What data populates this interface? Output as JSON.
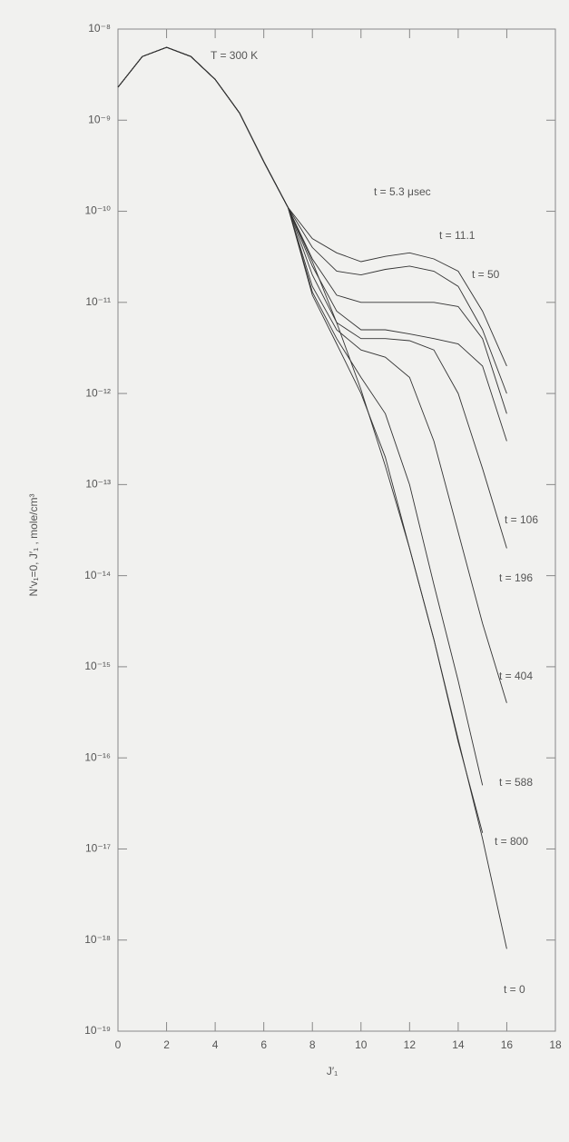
{
  "chart_data": {
    "type": "line",
    "xlabel": "J′₁",
    "ylabel": "N′v₁=0, J′₁ , mole/cm³",
    "annotations": [
      "T = 300 K"
    ],
    "log_y": true,
    "color": "#333333",
    "xlim": [
      0,
      18
    ],
    "xticks": [
      0,
      2,
      4,
      6,
      8,
      10,
      12,
      14,
      16,
      18
    ],
    "ylim": [
      1e-19,
      1e-08
    ],
    "yticks": [
      {
        "value": 1e-08,
        "label": "10⁻⁸"
      },
      {
        "value": 1e-09,
        "label": "10⁻⁹"
      },
      {
        "value": 1e-10,
        "label": "10⁻¹⁰"
      },
      {
        "value": 1e-11,
        "label": "10⁻¹¹"
      },
      {
        "value": 1e-12,
        "label": "10⁻¹²"
      },
      {
        "value": 1e-13,
        "label": "10⁻¹³"
      },
      {
        "value": 1e-14,
        "label": "10⁻¹⁴"
      },
      {
        "value": 1e-15,
        "label": "10⁻¹⁵"
      },
      {
        "value": 1e-16,
        "label": "10⁻¹⁶"
      },
      {
        "value": 1e-17,
        "label": "10⁻¹⁷"
      },
      {
        "value": 1e-18,
        "label": "10⁻¹⁸"
      },
      {
        "value": 1e-19,
        "label": "10⁻¹⁹"
      }
    ],
    "x": [
      0,
      1,
      2,
      3,
      4,
      5,
      6,
      7,
      8,
      9,
      10,
      11,
      12,
      13,
      14,
      15,
      16
    ],
    "series": [
      {
        "name": "t = 5.3 μsec",
        "values": [
          2.3e-09,
          5e-09,
          6.3e-09,
          5e-09,
          2.8e-09,
          1.2e-09,
          3.5e-10,
          1.1e-10,
          5e-11,
          3.5e-11,
          2.8e-11,
          3.2e-11,
          3.5e-11,
          3e-11,
          2.2e-11,
          8e-12,
          2e-12
        ]
      },
      {
        "name": "t = 11.1",
        "values": [
          2.3e-09,
          5e-09,
          6.3e-09,
          5e-09,
          2.8e-09,
          1.2e-09,
          3.5e-10,
          1.1e-10,
          4e-11,
          2.2e-11,
          2e-11,
          2.3e-11,
          2.5e-11,
          2.2e-11,
          1.5e-11,
          5e-12,
          1e-12
        ]
      },
      {
        "name": "t = 50",
        "values": [
          2.3e-09,
          5e-09,
          6.3e-09,
          5e-09,
          2.8e-09,
          1.2e-09,
          3.5e-10,
          1.1e-10,
          3e-11,
          1.2e-11,
          1e-11,
          1e-11,
          1e-11,
          1e-11,
          9e-12,
          4e-12,
          6e-13
        ]
      },
      {
        "name": "t = 106",
        "values": [
          2.3e-09,
          5e-09,
          6.3e-09,
          5e-09,
          2.8e-09,
          1.2e-09,
          3.5e-10,
          1.1e-10,
          2.5e-11,
          8e-12,
          5e-12,
          5e-12,
          4.5e-12,
          4e-12,
          3.5e-12,
          2e-12,
          3e-13
        ]
      },
      {
        "name": "t = 196",
        "values": [
          2.3e-09,
          5e-09,
          6.3e-09,
          5e-09,
          2.8e-09,
          1.2e-09,
          3.5e-10,
          1.1e-10,
          2e-11,
          6e-12,
          4e-12,
          4e-12,
          3.8e-12,
          3e-12,
          1e-12,
          1.5e-13,
          2e-14
        ]
      },
      {
        "name": "t = 404",
        "values": [
          2.3e-09,
          5e-09,
          6.3e-09,
          5e-09,
          2.8e-09,
          1.2e-09,
          3.5e-10,
          1.1e-10,
          1.5e-11,
          5e-12,
          3e-12,
          2.5e-12,
          1.5e-12,
          3e-13,
          3e-14,
          3e-15,
          4e-16
        ]
      },
      {
        "name": "t = 588",
        "values": [
          2.3e-09,
          5e-09,
          6.3e-09,
          5e-09,
          2.8e-09,
          1.2e-09,
          3.5e-10,
          1.1e-10,
          1.3e-11,
          4e-12,
          1.5e-12,
          6e-13,
          1e-13,
          8e-15,
          7e-16,
          5e-17,
          null
        ]
      },
      {
        "name": "t = 800",
        "values": [
          2.3e-09,
          5e-09,
          6.3e-09,
          5e-09,
          2.8e-09,
          1.2e-09,
          3.5e-10,
          1.1e-10,
          1.2e-11,
          3.5e-12,
          1e-12,
          2e-13,
          2e-14,
          2e-15,
          1.5e-16,
          1.5e-17,
          null
        ]
      },
      {
        "name": "t = 0",
        "values": [
          2.3e-09,
          5e-09,
          6.3e-09,
          5e-09,
          2.8e-09,
          1.2e-09,
          3.5e-10,
          1.1e-10,
          2.8e-11,
          6e-12,
          1.1e-12,
          1.6e-13,
          2e-14,
          2e-15,
          1.6e-16,
          1.3e-17,
          8e-19
        ]
      }
    ]
  }
}
